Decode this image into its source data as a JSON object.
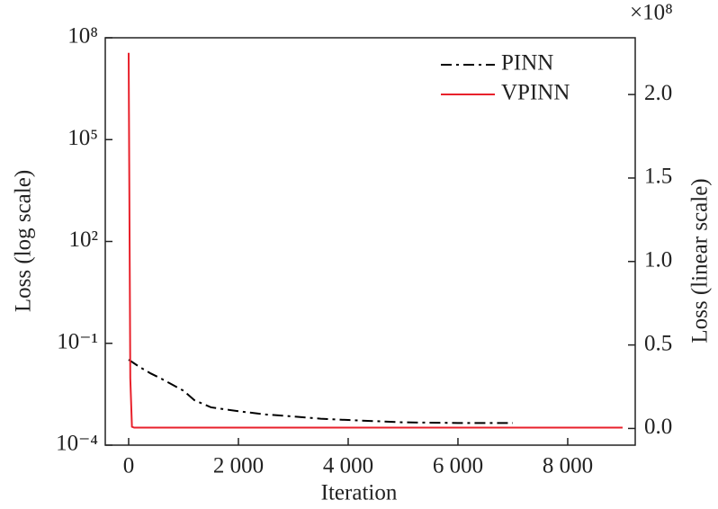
{
  "chart_data": {
    "type": "line",
    "xlabel": "Iteration",
    "ylabel": "Loss (log scale)",
    "y2label": "Loss (linear scale)",
    "y2_offset_label": "×10⁸",
    "xlim": [
      -426,
      9230
    ],
    "xticks": [
      0,
      {
        "value": 2000,
        "label": "2 000"
      },
      {
        "value": 4000,
        "label": "4 000"
      },
      {
        "value": 6000,
        "label": "6 000"
      },
      {
        "value": 8000,
        "label": "8 000"
      }
    ],
    "ylim": [
      0.0001,
      100000000
    ],
    "yscale": "log",
    "yticks": [
      {
        "value": 100000000,
        "label": "10⁸"
      },
      {
        "value": 100000,
        "label": "10⁵"
      },
      {
        "value": 100,
        "label": "10²"
      },
      {
        "value": 0.1,
        "label": "10⁻¹"
      },
      {
        "value": 0.0001,
        "label": "10⁻⁴"
      }
    ],
    "y2lim": [
      -10000000,
      234000000
    ],
    "y2ticks": [
      {
        "value": 0,
        "label": "0.0"
      },
      {
        "value": 50000000,
        "label": "0.5"
      },
      {
        "value": 100000000,
        "label": "1.0"
      },
      {
        "value": 150000000,
        "label": "1.5"
      },
      {
        "value": 200000000,
        "label": "2.0"
      }
    ],
    "legend": "upper right",
    "series": [
      {
        "name": "PINN",
        "color": "#000000",
        "dash": "dashdot",
        "axis": "y",
        "x": [
          0,
          200,
          400,
          600,
          800,
          1000,
          1200,
          1500,
          2000,
          2500,
          3000,
          3500,
          4000,
          5000,
          6000,
          7000
        ],
        "values": [
          0.033,
          0.02,
          0.013,
          0.009,
          0.006,
          0.004,
          0.0021,
          0.0013,
          0.001,
          0.0008,
          0.0007,
          0.0006,
          0.00055,
          0.00047,
          0.00045,
          0.00045
        ]
      },
      {
        "name": "VPINN",
        "color": "#e8212b",
        "dash": "solid",
        "axis": "y2",
        "x": [
          0,
          10,
          30,
          60,
          100,
          9000
        ],
        "values": [
          225000000,
          160000000,
          30000000,
          1000000,
          500000,
          500000
        ]
      }
    ]
  }
}
